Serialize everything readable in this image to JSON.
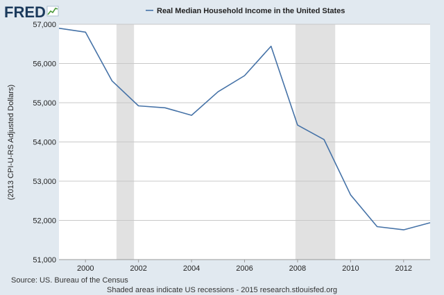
{
  "logo": {
    "text": "FRED"
  },
  "colors": {
    "background": "#e1e9f0",
    "plot_background": "#ffffff",
    "series": "#4572a7",
    "recession_shade": "#e1e1e1",
    "gridline": "#c8c8c8",
    "logo": "#1b3a5c"
  },
  "chart_data": {
    "type": "line",
    "title": "Real Median Household Income in the United States",
    "xlabel": "",
    "ylabel": "(2013 CPI-U-RS Adjusted Dollars)",
    "xlim": [
      1999,
      2013
    ],
    "ylim": [
      51000,
      57000
    ],
    "x_ticks": [
      2000,
      2002,
      2004,
      2006,
      2008,
      2010,
      2012
    ],
    "y_ticks": [
      51000,
      52000,
      53000,
      54000,
      55000,
      56000,
      57000
    ],
    "x_tick_labels": [
      "2000",
      "2002",
      "2004",
      "2006",
      "2008",
      "2010",
      "2012"
    ],
    "y_tick_labels": [
      "51,000",
      "52,000",
      "53,000",
      "54,000",
      "55,000",
      "56,000",
      "57,000"
    ],
    "grid": true,
    "legend_position": "top-center",
    "series": [
      {
        "name": "Real Median Household Income in the United States",
        "x": [
          1999,
          2000,
          2001,
          2002,
          2003,
          2004,
          2005,
          2006,
          2007,
          2008,
          2009,
          2010,
          2011,
          2012,
          2013
        ],
        "y": [
          56900,
          56800,
          55560,
          54920,
          54870,
          54680,
          55280,
          55690,
          56440,
          54430,
          54060,
          52650,
          51840,
          51760,
          51940
        ]
      }
    ],
    "recessions": [
      {
        "start": 2001.17,
        "end": 2001.83
      },
      {
        "start": 2007.92,
        "end": 2009.42
      }
    ]
  },
  "footer": {
    "source": "Source: US. Bureau of the Census",
    "note": "Shaded areas indicate US recessions - 2015 research.stlouisfed.org"
  }
}
